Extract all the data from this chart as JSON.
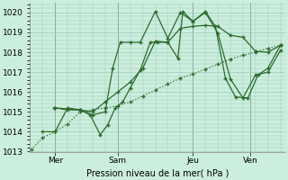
{
  "background_color": "#cceedd",
  "grid_color": "#99ccbb",
  "line_color": "#2d6a2d",
  "ylabel_text": "Pression niveau de la mer( hPa )",
  "ylim": [
    1013.0,
    1020.5
  ],
  "yticks": [
    1013,
    1014,
    1015,
    1016,
    1017,
    1018,
    1019,
    1020
  ],
  "xlim": [
    0,
    10.2
  ],
  "day_labels": [
    "Mer",
    "Sam",
    "Jeu",
    "Ven"
  ],
  "day_positions": [
    1.0,
    3.5,
    6.5,
    8.8
  ],
  "series": [
    {
      "x": [
        0.05,
        0.5,
        1.0,
        1.5,
        2.0,
        2.5,
        3.0,
        3.5,
        4.0,
        4.5,
        5.0,
        5.5,
        6.0,
        6.5,
        7.0,
        7.5,
        8.0,
        8.5,
        9.0,
        9.5,
        10.0
      ],
      "y": [
        1013.1,
        1013.7,
        1014.0,
        1014.4,
        1015.0,
        1015.1,
        1015.2,
        1015.3,
        1015.5,
        1015.8,
        1016.1,
        1016.4,
        1016.7,
        1016.9,
        1017.15,
        1017.4,
        1017.65,
        1017.85,
        1018.0,
        1018.2,
        1018.35
      ],
      "style": ":",
      "marker": "+"
    },
    {
      "x": [
        0.5,
        1.0,
        1.5,
        2.0,
        2.4,
        2.8,
        3.1,
        3.4,
        3.7,
        4.0,
        4.4,
        4.8,
        5.1,
        5.5,
        5.9,
        6.1,
        6.5,
        7.0,
        7.4,
        7.8,
        8.2,
        8.7,
        9.1,
        9.5,
        10.0
      ],
      "y": [
        1014.0,
        1014.0,
        1015.2,
        1015.1,
        1014.85,
        1013.85,
        1014.35,
        1015.2,
        1015.5,
        1016.2,
        1017.1,
        1018.5,
        1018.5,
        1018.5,
        1017.7,
        1020.05,
        1019.55,
        1020.05,
        1019.3,
        1016.7,
        1015.75,
        1015.7,
        1016.85,
        1017.2,
        1018.35
      ],
      "style": "-",
      "marker": "+"
    },
    {
      "x": [
        0.95,
        1.5,
        2.0,
        2.5,
        3.0,
        3.5,
        4.0,
        4.5,
        5.0,
        5.5,
        6.0,
        6.5,
        7.0,
        7.5,
        8.0,
        8.5,
        9.0,
        9.5,
        10.0
      ],
      "y": [
        1015.2,
        1015.15,
        1015.1,
        1015.0,
        1015.5,
        1016.0,
        1016.5,
        1017.2,
        1018.55,
        1018.5,
        1019.2,
        1019.3,
        1019.35,
        1019.3,
        1018.85,
        1018.75,
        1018.05,
        1018.0,
        1018.35
      ],
      "style": "-",
      "marker": "+"
    },
    {
      "x": [
        1.0,
        1.5,
        2.0,
        2.5,
        3.0,
        3.3,
        3.6,
        4.0,
        4.4,
        5.0,
        5.5,
        6.0,
        6.5,
        7.0,
        7.5,
        8.0,
        8.5,
        9.0,
        9.5,
        10.0
      ],
      "y": [
        1015.2,
        1015.1,
        1015.1,
        1014.85,
        1015.0,
        1017.2,
        1018.5,
        1018.5,
        1018.5,
        1020.05,
        1018.7,
        1020.0,
        1019.55,
        1020.0,
        1018.95,
        1016.65,
        1015.7,
        1016.85,
        1017.0,
        1018.1
      ],
      "style": "-",
      "marker": "+"
    }
  ]
}
